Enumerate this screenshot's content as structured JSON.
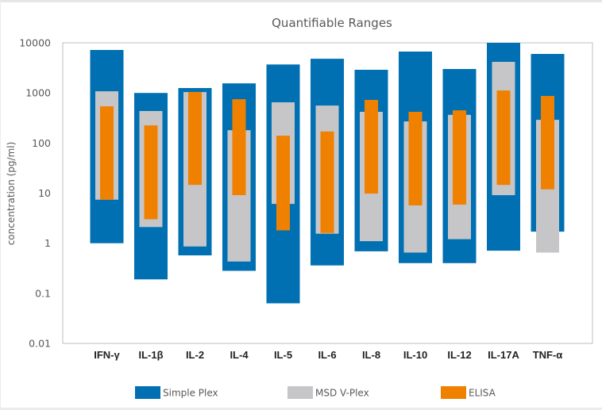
{
  "chart_data": {
    "type": "bar",
    "subtype": "floating-range-log",
    "title": "Quantifiable Ranges",
    "xlabel": "",
    "ylabel": "concentration (pg/ml)",
    "yscale": "log",
    "ylim": [
      0.01,
      10000
    ],
    "yticks": [
      10000,
      1000,
      100,
      10,
      1,
      0.1,
      0.01
    ],
    "ytick_labels": [
      "10000",
      "1000",
      "100",
      "10",
      "1",
      "0.1",
      "0.01"
    ],
    "grid": false,
    "legend_position": "bottom",
    "categories": [
      "IFN-γ",
      "IL-1β",
      "IL-2",
      "IL-4",
      "IL-5",
      "IL-6",
      "IL-8",
      "IL-10",
      "IL-12",
      "IL-17A",
      "TNF-α"
    ],
    "series": [
      {
        "name": "Simple Plex",
        "color": "#0070B2",
        "ranges": [
          [
            1.0,
            7200
          ],
          [
            0.19,
            1000
          ],
          [
            0.57,
            1250
          ],
          [
            0.28,
            1550
          ],
          [
            0.063,
            3700
          ],
          [
            0.36,
            4800
          ],
          [
            0.69,
            2900
          ],
          [
            0.4,
            6700
          ],
          [
            0.4,
            3000
          ],
          [
            0.71,
            10000
          ],
          [
            1.7,
            6000
          ]
        ]
      },
      {
        "name": "MSD V-Plex",
        "color": "#C6C6C8",
        "ranges": [
          [
            7.4,
            1080
          ],
          [
            2.1,
            435
          ],
          [
            0.86,
            1040
          ],
          [
            0.43,
            180
          ],
          [
            6.1,
            650
          ],
          [
            1.55,
            560
          ],
          [
            1.1,
            420
          ],
          [
            0.65,
            270
          ],
          [
            1.2,
            365
          ],
          [
            9.1,
            4170
          ],
          [
            0.65,
            290
          ]
        ]
      },
      {
        "name": "ELISA",
        "color": "#F08000",
        "ranges": [
          [
            7.4,
            540
          ],
          [
            3.0,
            225
          ],
          [
            14.6,
            1040
          ],
          [
            9.1,
            750
          ],
          [
            1.8,
            140
          ],
          [
            1.6,
            170
          ],
          [
            9.8,
            725
          ],
          [
            5.7,
            420
          ],
          [
            5.9,
            450
          ],
          [
            14.6,
            1120
          ],
          [
            11.9,
            870
          ]
        ]
      }
    ]
  }
}
